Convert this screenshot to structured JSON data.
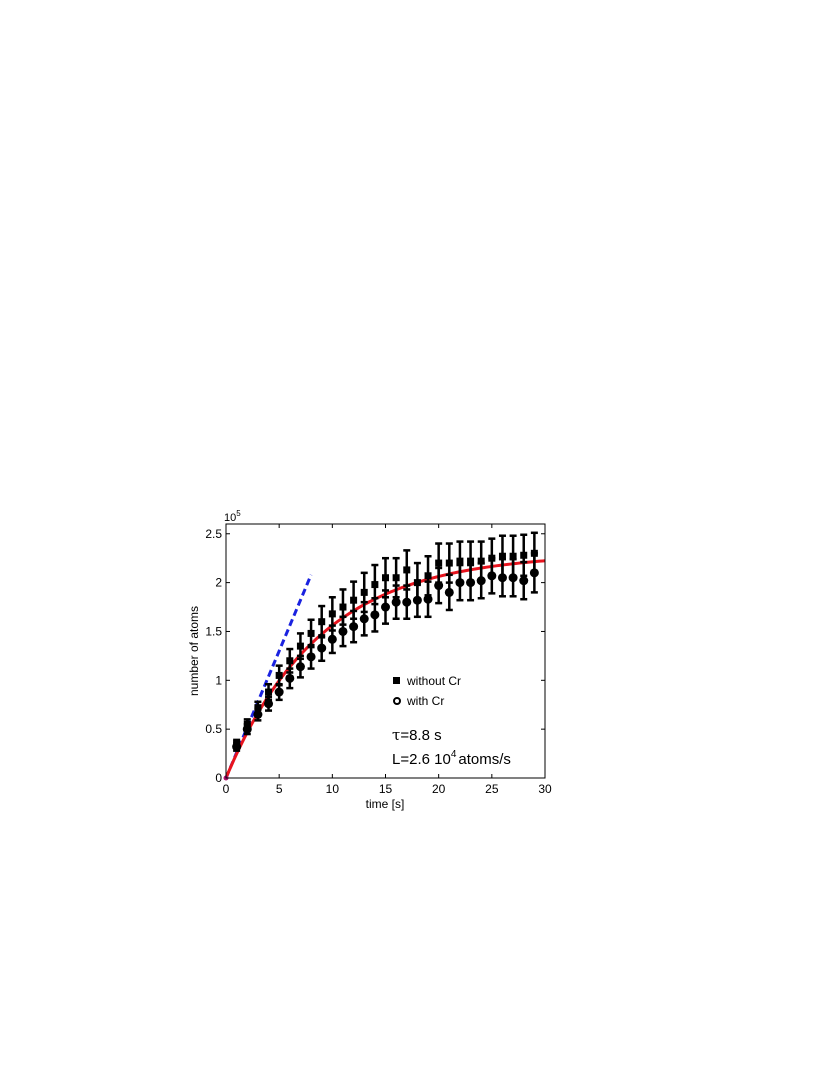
{
  "chart_data": {
    "type": "scatter",
    "xlabel": "time [s]",
    "ylabel": "number of atoms",
    "xlim": [
      0,
      30
    ],
    "ylim": [
      0,
      2.6
    ],
    "y_scale_exponent": "10",
    "y_scale_power": "5",
    "xticks": [
      "0",
      "5",
      "10",
      "15",
      "20",
      "25",
      "30"
    ],
    "yticks": [
      "0",
      "0.5",
      "1",
      "1.5",
      "2",
      "2.5"
    ],
    "grid": false,
    "legend_position": "center-right",
    "series": [
      {
        "name": "without Cr",
        "marker": "square",
        "x": [
          1,
          2,
          3,
          4,
          5,
          6,
          7,
          8,
          9,
          10,
          11,
          12,
          13,
          14,
          15,
          16,
          17,
          18,
          19,
          20,
          21,
          22,
          23,
          24,
          25,
          26,
          27,
          28,
          29
        ],
        "y": [
          0.35,
          0.55,
          0.72,
          0.88,
          1.05,
          1.2,
          1.35,
          1.48,
          1.6,
          1.68,
          1.75,
          1.82,
          1.9,
          1.98,
          2.05,
          2.05,
          2.13,
          2.0,
          2.07,
          2.2,
          2.2,
          2.22,
          2.22,
          2.22,
          2.25,
          2.27,
          2.27,
          2.28,
          2.3
        ],
        "err": [
          0.04,
          0.05,
          0.06,
          0.08,
          0.1,
          0.12,
          0.13,
          0.14,
          0.16,
          0.17,
          0.18,
          0.19,
          0.2,
          0.2,
          0.2,
          0.2,
          0.2,
          0.2,
          0.2,
          0.2,
          0.2,
          0.2,
          0.2,
          0.2,
          0.2,
          0.21,
          0.21,
          0.21,
          0.21
        ]
      },
      {
        "name": "with Cr",
        "marker": "circle",
        "x": [
          1,
          2,
          3,
          4,
          5,
          6,
          7,
          8,
          9,
          10,
          11,
          12,
          13,
          14,
          15,
          16,
          17,
          18,
          19,
          20,
          21,
          22,
          23,
          24,
          25,
          26,
          27,
          28,
          29
        ],
        "y": [
          0.32,
          0.5,
          0.65,
          0.76,
          0.88,
          1.02,
          1.14,
          1.24,
          1.33,
          1.42,
          1.5,
          1.55,
          1.63,
          1.67,
          1.75,
          1.8,
          1.8,
          1.82,
          1.83,
          1.97,
          1.9,
          2.0,
          2.0,
          2.02,
          2.07,
          2.05,
          2.05,
          2.02,
          2.1
        ],
        "err": [
          0.04,
          0.05,
          0.06,
          0.07,
          0.08,
          0.1,
          0.11,
          0.12,
          0.13,
          0.14,
          0.15,
          0.16,
          0.17,
          0.17,
          0.17,
          0.17,
          0.17,
          0.17,
          0.18,
          0.18,
          0.18,
          0.18,
          0.18,
          0.18,
          0.18,
          0.19,
          0.19,
          0.19,
          0.2
        ]
      }
    ],
    "fit_curve": {
      "color": "#e8141e",
      "style": "solid",
      "amplitude": 2.3,
      "tau": 8.8,
      "x_range": [
        0,
        30
      ]
    },
    "initial_slope_line": {
      "color": "#1a22e0",
      "style": "dashed",
      "slope": 0.26,
      "x_range": [
        0,
        8
      ]
    },
    "annotation": {
      "tau_symbol": "τ",
      "tau_text": "=8.8 s",
      "rate_text": "L=2.6 10",
      "rate_exponent": "4",
      "rate_unit": "atoms/s"
    }
  }
}
